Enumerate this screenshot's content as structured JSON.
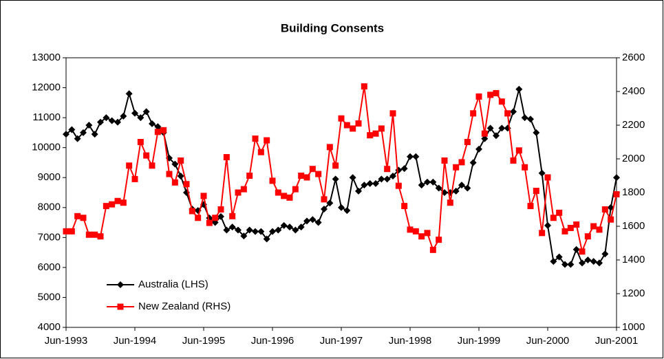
{
  "chart_data": {
    "type": "line",
    "title": "Building Consents",
    "categories": [
      "Jun-1993",
      null,
      null,
      null,
      null,
      null,
      null,
      null,
      null,
      null,
      null,
      null,
      "Jun-1994",
      null,
      null,
      null,
      null,
      null,
      null,
      null,
      null,
      null,
      null,
      null,
      "Jun-1995",
      null,
      null,
      null,
      null,
      null,
      null,
      null,
      null,
      null,
      null,
      null,
      "Jun-1996",
      null,
      null,
      null,
      null,
      null,
      null,
      null,
      null,
      null,
      null,
      null,
      "Jun-1997",
      null,
      null,
      null,
      null,
      null,
      null,
      null,
      null,
      null,
      null,
      null,
      "Jun-1998",
      null,
      null,
      null,
      null,
      null,
      null,
      null,
      null,
      null,
      null,
      null,
      "Jun-1999",
      null,
      null,
      null,
      null,
      null,
      null,
      null,
      null,
      null,
      null,
      null,
      "Jun-2000",
      null,
      null,
      null,
      null,
      null,
      null,
      null,
      null,
      null,
      null,
      null,
      "Jun-2001"
    ],
    "series": [
      {
        "name": "Australia (LHS)",
        "color": "#000000",
        "marker": "diamond",
        "axis": "y",
        "values": [
          10450,
          10600,
          10300,
          10500,
          10750,
          10450,
          10850,
          11000,
          10900,
          10850,
          11050,
          11800,
          11150,
          11000,
          11200,
          10800,
          10700,
          10500,
          9650,
          9450,
          9050,
          8500,
          7950,
          7900,
          8100,
          7650,
          7500,
          7700,
          7250,
          7350,
          7250,
          7050,
          7250,
          7200,
          7200,
          6950,
          7200,
          7250,
          7400,
          7350,
          7250,
          7350,
          7550,
          7600,
          7500,
          7950,
          8150,
          8950,
          8000,
          7900,
          9000,
          8550,
          8750,
          8800,
          8800,
          8950,
          8950,
          9050,
          9250,
          9300,
          9700,
          9700,
          8750,
          8850,
          8850,
          8650,
          8500,
          8500,
          8550,
          8750,
          8650,
          9500,
          9950,
          10300,
          10650,
          10400,
          10650,
          10650,
          11200,
          11950,
          11000,
          10950,
          10500,
          9150,
          7400,
          6200,
          6350,
          6100,
          6100,
          6600,
          6150,
          6250,
          6200,
          6150,
          6450,
          8000,
          9000
        ]
      },
      {
        "name": "New Zealand (RHS)",
        "color": "#ff0000",
        "marker": "square",
        "axis": "y2",
        "values": [
          1570,
          1570,
          1660,
          1650,
          1550,
          1550,
          1540,
          1720,
          1730,
          1750,
          1740,
          1960,
          1880,
          2100,
          2020,
          1960,
          2160,
          2170,
          1910,
          1860,
          1990,
          1850,
          1690,
          1650,
          1780,
          1620,
          1650,
          1700,
          2010,
          1660,
          1800,
          1820,
          1900,
          2120,
          2040,
          2110,
          1870,
          1800,
          1780,
          1770,
          1820,
          1900,
          1890,
          1940,
          1910,
          1760,
          2070,
          1960,
          2240,
          2200,
          2180,
          2210,
          2430,
          2140,
          2150,
          2180,
          1940,
          2270,
          1840,
          1720,
          1580,
          1570,
          1540,
          1560,
          1460,
          1520,
          1990,
          1740,
          1950,
          1980,
          2100,
          2270,
          2370,
          2150,
          2380,
          2390,
          2340,
          2270,
          1990,
          2050,
          1950,
          1720,
          1810,
          1560,
          1890,
          1650,
          1680,
          1570,
          1590,
          1610,
          1450,
          1540,
          1600,
          1580,
          1700,
          1640,
          1790
        ]
      }
    ],
    "ylim": [
      4000,
      13000
    ],
    "yticks": [
      4000,
      5000,
      6000,
      7000,
      8000,
      9000,
      10000,
      11000,
      12000,
      13000
    ],
    "y2lim": [
      1000,
      2600
    ],
    "y2ticks": [
      1000,
      1200,
      1400,
      1600,
      1800,
      2000,
      2200,
      2400,
      2600
    ],
    "grid": false,
    "legend": "lower left"
  }
}
